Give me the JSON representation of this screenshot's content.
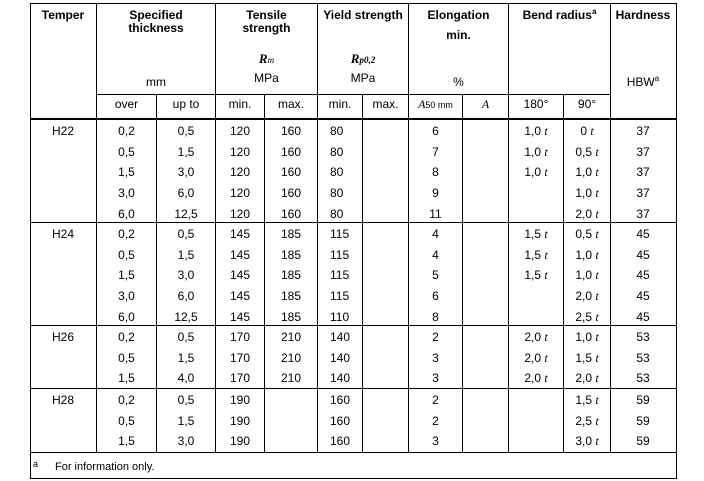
{
  "headers": {
    "temper": "Temper",
    "thickness_1": "Specified",
    "thickness_2": "thickness",
    "thickness_unit": "mm",
    "tensile_1": "Tensile",
    "tensile_2": "strength",
    "tensile_symbol": "R",
    "tensile_symbol_sub": "m",
    "tensile_unit": "MPa",
    "yield_title": "Yield strength",
    "yield_symbol": "R",
    "yield_symbol_sub": "p0,2",
    "yield_unit": "MPa",
    "elong_1": "Elongation",
    "elong_2": "min.",
    "elong_unit": "%",
    "bend_title": "Bend radius",
    "bend_sup": "a",
    "hardness_title": "Hardness",
    "hardness_unit": "HBW",
    "hardness_sup": "a"
  },
  "subheaders": {
    "over": "over",
    "up_to": "up to",
    "min_1": "min.",
    "max_1": "max.",
    "min_2": "min.",
    "max_2": "max.",
    "a50": "A",
    "a50_sub": "50 mm",
    "a": "A",
    "deg180": "180°",
    "deg90": "90°"
  },
  "groups": [
    {
      "temper": "H22",
      "rows": [
        {
          "over": "0,2",
          "upto": "0,5",
          "ts_min": "120",
          "ts_max": "160",
          "ys_min": "80",
          "ys_max": "",
          "a50": "6",
          "a": "",
          "b180": "1,0 t",
          "b90": "0 t",
          "hbw": "37"
        },
        {
          "over": "0,5",
          "upto": "1,5",
          "ts_min": "120",
          "ts_max": "160",
          "ys_min": "80",
          "ys_max": "",
          "a50": "7",
          "a": "",
          "b180": "1,0 t",
          "b90": "0,5 t",
          "hbw": "37"
        },
        {
          "over": "1,5",
          "upto": "3,0",
          "ts_min": "120",
          "ts_max": "160",
          "ys_min": "80",
          "ys_max": "",
          "a50": "8",
          "a": "",
          "b180": "1,0 t",
          "b90": "1,0 t",
          "hbw": "37"
        },
        {
          "over": "3,0",
          "upto": "6,0",
          "ts_min": "120",
          "ts_max": "160",
          "ys_min": "80",
          "ys_max": "",
          "a50": "9",
          "a": "",
          "b180": "",
          "b90": "1,0 t",
          "hbw": "37"
        },
        {
          "over": "6,0",
          "upto": "12,5",
          "ts_min": "120",
          "ts_max": "160",
          "ys_min": "80",
          "ys_max": "",
          "a50": "11",
          "a": "",
          "b180": "",
          "b90": "2,0 t",
          "hbw": "37"
        }
      ]
    },
    {
      "temper": "H24",
      "rows": [
        {
          "over": "0,2",
          "upto": "0,5",
          "ts_min": "145",
          "ts_max": "185",
          "ys_min": "115",
          "ys_max": "",
          "a50": "4",
          "a": "",
          "b180": "1,5 t",
          "b90": "0,5 t",
          "hbw": "45"
        },
        {
          "over": "0,5",
          "upto": "1,5",
          "ts_min": "145",
          "ts_max": "185",
          "ys_min": "115",
          "ys_max": "",
          "a50": "4",
          "a": "",
          "b180": "1,5 t",
          "b90": "1,0 t",
          "hbw": "45"
        },
        {
          "over": "1,5",
          "upto": "3,0",
          "ts_min": "145",
          "ts_max": "185",
          "ys_min": "115",
          "ys_max": "",
          "a50": "5",
          "a": "",
          "b180": "1,5 t",
          "b90": "1,0 t",
          "hbw": "45"
        },
        {
          "over": "3,0",
          "upto": "6,0",
          "ts_min": "145",
          "ts_max": "185",
          "ys_min": "115",
          "ys_max": "",
          "a50": "6",
          "a": "",
          "b180": "",
          "b90": "2,0 t",
          "hbw": "45"
        },
        {
          "over": "6,0",
          "upto": "12,5",
          "ts_min": "145",
          "ts_max": "185",
          "ys_min": "110",
          "ys_max": "",
          "a50": "8",
          "a": "",
          "b180": "",
          "b90": "2,5 t",
          "hbw": "45"
        }
      ]
    },
    {
      "temper": "H26",
      "rows": [
        {
          "over": "0,2",
          "upto": "0,5",
          "ts_min": "170",
          "ts_max": "210",
          "ys_min": "140",
          "ys_max": "",
          "a50": "2",
          "a": "",
          "b180": "2,0 t",
          "b90": "1,0 t",
          "hbw": "53"
        },
        {
          "over": "0,5",
          "upto": "1,5",
          "ts_min": "170",
          "ts_max": "210",
          "ys_min": "140",
          "ys_max": "",
          "a50": "3",
          "a": "",
          "b180": "2,0 t",
          "b90": "1,5 t",
          "hbw": "53"
        },
        {
          "over": "1,5",
          "upto": "4,0",
          "ts_min": "170",
          "ts_max": "210",
          "ys_min": "140",
          "ys_max": "",
          "a50": "3",
          "a": "",
          "b180": "2,0 t",
          "b90": "2,0 t",
          "hbw": "53"
        }
      ]
    },
    {
      "temper": "H28",
      "rows": [
        {
          "over": "0,2",
          "upto": "0,5",
          "ts_min": "190",
          "ts_max": "",
          "ys_min": "160",
          "ys_max": "",
          "a50": "2",
          "a": "",
          "b180": "",
          "b90": "1,5 t",
          "hbw": "59"
        },
        {
          "over": "0,5",
          "upto": "1,5",
          "ts_min": "190",
          "ts_max": "",
          "ys_min": "160",
          "ys_max": "",
          "a50": "2",
          "a": "",
          "b180": "",
          "b90": "2,5 t",
          "hbw": "59"
        },
        {
          "over": "1,5",
          "upto": "3,0",
          "ts_min": "190",
          "ts_max": "",
          "ys_min": "160",
          "ys_max": "",
          "a50": "3",
          "a": "",
          "b180": "",
          "b90": "3,0 t",
          "hbw": "59"
        }
      ]
    }
  ],
  "footnote": {
    "marker": "a",
    "text": "For information only."
  }
}
